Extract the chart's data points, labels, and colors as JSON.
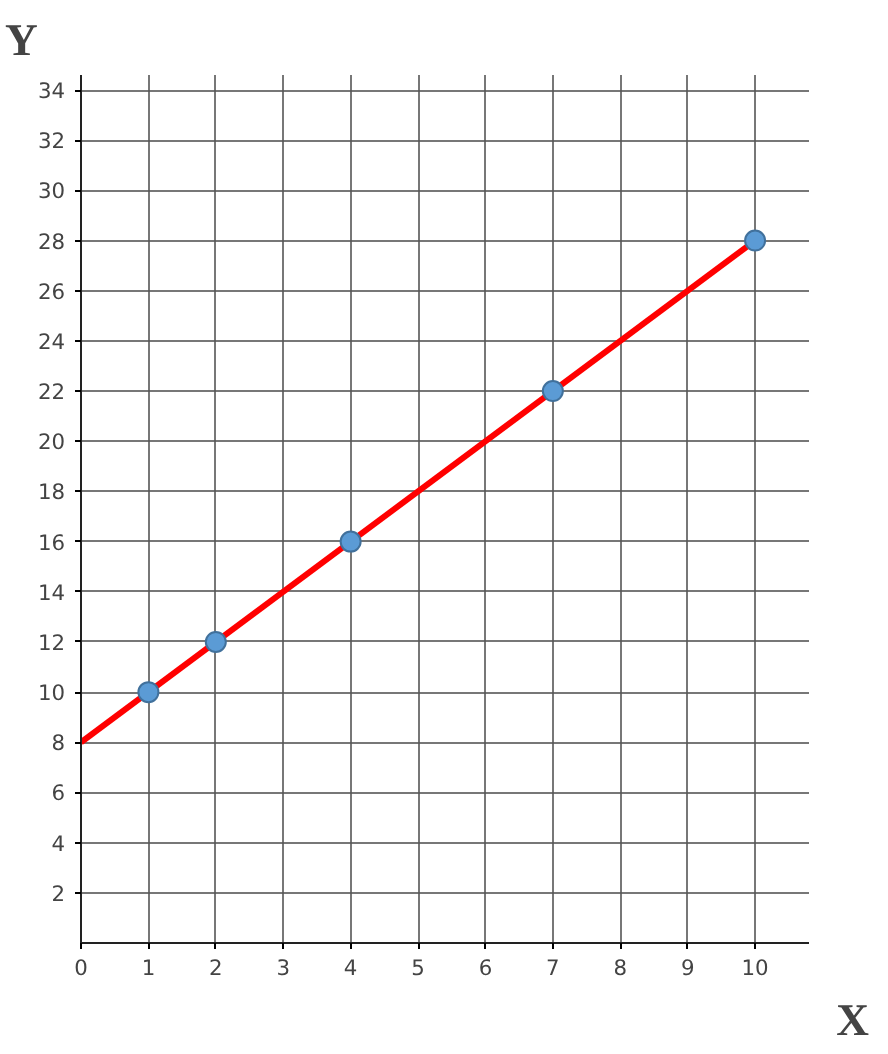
{
  "chart_data": {
    "type": "line",
    "xlabel": "X",
    "ylabel": "Y",
    "xlim": [
      0,
      10.8
    ],
    "ylim": [
      0,
      34.6
    ],
    "xticks": [
      0,
      1,
      2,
      3,
      4,
      5,
      6,
      7,
      8,
      9,
      10
    ],
    "yticks": [
      2,
      4,
      6,
      8,
      10,
      12,
      14,
      16,
      18,
      20,
      22,
      24,
      26,
      28,
      30,
      32,
      34
    ],
    "grid": true,
    "series": [
      {
        "type": "line",
        "color": "#ff0000",
        "x": [
          0,
          10
        ],
        "values": [
          8,
          28
        ],
        "marker": "none",
        "line_style": "solid"
      },
      {
        "type": "scatter",
        "color": "#5b9bd5",
        "x": [
          1,
          2,
          4,
          7,
          10
        ],
        "values": [
          10,
          12,
          16,
          22,
          28
        ],
        "marker": "circle"
      }
    ]
  }
}
